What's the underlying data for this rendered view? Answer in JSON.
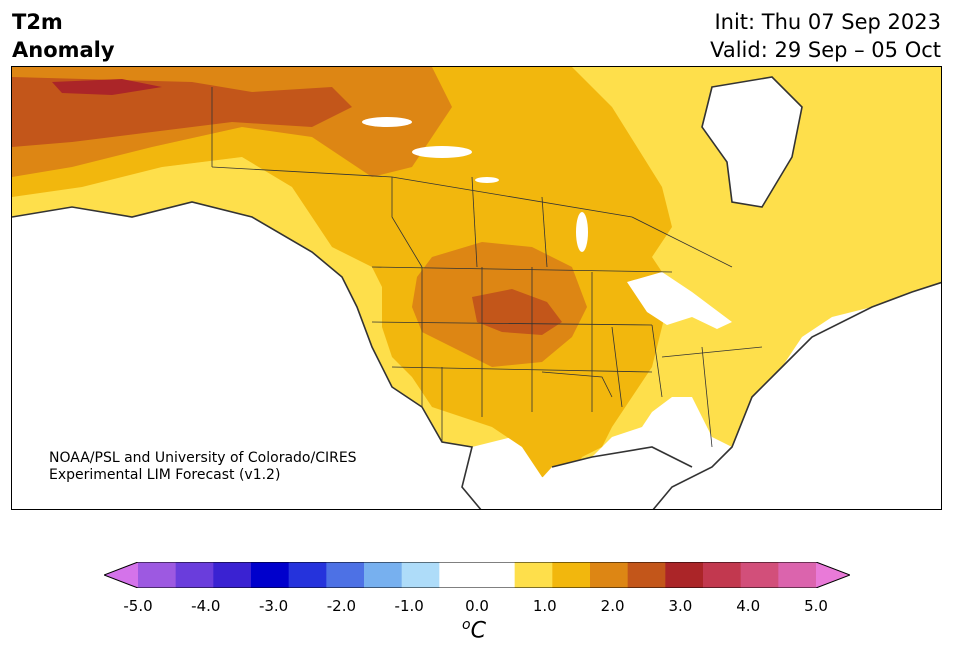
{
  "title": {
    "left_line1": "T2m",
    "left_line2": "Anomaly",
    "init": "Init: Thu 07 Sep 2023",
    "valid": "Valid: 29 Sep – 05 Oct"
  },
  "credit": {
    "line1": "NOAA/PSL and University of Colorado/CIRES",
    "line2": "Experimental LIM Forecast (v1.2)"
  },
  "colorbar": {
    "unit_base": "C",
    "unit_sup": "o",
    "tick_labels": [
      "-5.0",
      "-4.0",
      "-3.0",
      "-2.0",
      "-1.0",
      "0.0",
      "1.0",
      "2.0",
      "3.0",
      "4.0",
      "5.0"
    ],
    "colors": [
      "#d473ea",
      "#9d59e1",
      "#6a3ddc",
      "#3a22d2",
      "#0000cc",
      "#2533dc",
      "#4d71e5",
      "#77b0ef",
      "#aedcf9",
      "#ffffff",
      "#ffffff",
      "#fedf4b",
      "#f2b70d",
      "#dd8614",
      "#c3561a",
      "#ab2528",
      "#c2384f",
      "#d24f7a",
      "#db64ad",
      "#e97ad8"
    ],
    "extend": "both"
  },
  "legend_palette": {
    "land_none": "#ffffff",
    "level_0_5_1": "#fedf4b",
    "level_1_1_5": "#f2b70d",
    "level_1_5_2": "#dd8614",
    "level_2_2_5": "#c3561a",
    "level_2_5_3": "#ab2528",
    "coast": "#333333"
  }
}
